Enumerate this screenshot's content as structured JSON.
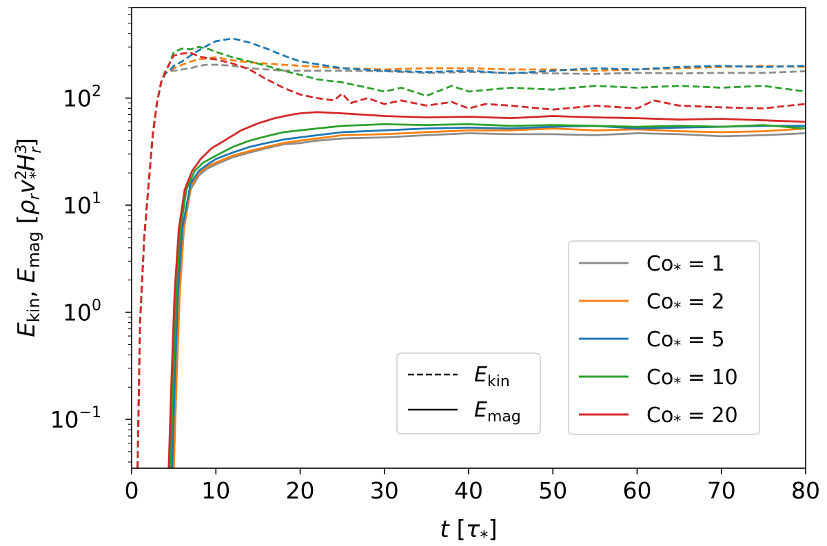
{
  "chart_data": {
    "type": "line",
    "x_label": "t [τ*]",
    "y_label": "E_kin, E_mag [ρ_r v*² H_r³]",
    "x_label_parts": {
      "var": "t",
      "unit_open": " [",
      "unit_sym": "τ",
      "unit_sub": "*",
      "unit_close": "]"
    },
    "y_label_parts": {
      "e1": "E",
      "s1": "kin",
      "sep": ", ",
      "e2": "E",
      "s2": "mag",
      "open": " [",
      "rho": "ρ",
      "rho_sub": "r",
      "v": "v",
      "v_sup": "2",
      "v_sub": "*",
      "h": "H",
      "h_sup": "3",
      "h_sub": "r",
      "close": "]"
    },
    "xlim": [
      0,
      80
    ],
    "ylim": [
      0.035,
      700
    ],
    "y_scale": "log",
    "x_ticks": [
      0,
      10,
      20,
      30,
      40,
      50,
      60,
      70,
      80
    ],
    "y_ticks": [
      {
        "value": 0.1,
        "base": "10",
        "exp": "−1"
      },
      {
        "value": 1,
        "base": "10",
        "exp": "0"
      },
      {
        "value": 10,
        "base": "10",
        "exp": "1"
      },
      {
        "value": 100,
        "base": "10",
        "exp": "2"
      }
    ],
    "legend_style": {
      "placement": "lower-center",
      "entries": [
        {
          "label": "E",
          "sub": "kin",
          "dash": "dashed"
        },
        {
          "label": "E",
          "sub": "mag",
          "dash": "solid"
        }
      ]
    },
    "legend_series": {
      "placement": "lower-right",
      "entries": [
        {
          "name": "Co*",
          "prefix": "Co",
          "sub": "*",
          "value": "= 1",
          "color": "#8c8c8c"
        },
        {
          "name": "Co*",
          "prefix": "Co",
          "sub": "*",
          "value": "= 2",
          "color": "#ff7f0e"
        },
        {
          "name": "Co*",
          "prefix": "Co",
          "sub": "*",
          "value": "= 5",
          "color": "#1f77b4"
        },
        {
          "name": "Co*",
          "prefix": "Co",
          "sub": "*",
          "value": "= 10",
          "color": "#2ca02c"
        },
        {
          "name": "Co*",
          "prefix": "Co",
          "sub": "*",
          "value": "= 20",
          "color": "#d62728"
        }
      ]
    },
    "series": [
      {
        "name": "E_kin, Co*=1",
        "color": "#8c8c8c",
        "dash": "dashed",
        "x": [
          0.7,
          1.0,
          1.5,
          2.0,
          2.5,
          3.0,
          3.5,
          4.0,
          4.5,
          5,
          6,
          7,
          8,
          9,
          10,
          12,
          14,
          16,
          18,
          20,
          25,
          30,
          35,
          40,
          45,
          50,
          55,
          60,
          65,
          70,
          75,
          80
        ],
        "y": [
          0.035,
          0.8,
          5,
          15,
          45,
          90,
          140,
          170,
          180,
          180,
          185,
          190,
          200,
          205,
          205,
          200,
          190,
          185,
          180,
          180,
          180,
          178,
          172,
          175,
          172,
          170,
          168,
          172,
          170,
          172,
          172,
          178
        ]
      },
      {
        "name": "E_kin, Co*=2",
        "color": "#ff7f0e",
        "dash": "dashed",
        "x": [
          0.7,
          1.0,
          1.5,
          2.0,
          2.5,
          3.0,
          3.5,
          4.0,
          4.5,
          5,
          6,
          7,
          8,
          9,
          10,
          12,
          14,
          16,
          18,
          20,
          25,
          30,
          35,
          40,
          45,
          50,
          55,
          60,
          65,
          70,
          75,
          80
        ],
        "y": [
          0.035,
          0.8,
          5,
          15,
          45,
          90,
          140,
          170,
          180,
          190,
          205,
          220,
          230,
          235,
          240,
          225,
          215,
          210,
          205,
          200,
          190,
          185,
          190,
          190,
          185,
          185,
          180,
          185,
          190,
          195,
          200,
          195
        ]
      },
      {
        "name": "E_kin, Co*=5",
        "color": "#1f77b4",
        "dash": "dashed",
        "x": [
          0.7,
          1.0,
          1.5,
          2.0,
          2.5,
          3.0,
          3.5,
          4.0,
          4.5,
          5,
          6,
          7,
          8,
          9,
          10,
          11,
          12,
          14,
          16,
          18,
          20,
          25,
          30,
          35,
          40,
          45,
          50,
          55,
          60,
          65,
          70,
          75,
          80
        ],
        "y": [
          0.035,
          0.8,
          5,
          15,
          45,
          90,
          140,
          170,
          180,
          200,
          220,
          250,
          280,
          310,
          340,
          350,
          360,
          330,
          290,
          250,
          220,
          190,
          180,
          175,
          180,
          170,
          180,
          190,
          185,
          195,
          200,
          195,
          200
        ]
      },
      {
        "name": "E_kin, Co*=10",
        "color": "#2ca02c",
        "dash": "dashed",
        "x": [
          0.7,
          1.0,
          1.5,
          2.0,
          2.5,
          3.0,
          3.5,
          4.0,
          4.5,
          5,
          6,
          7,
          8,
          9,
          10,
          12,
          14,
          16,
          18,
          20,
          22,
          25,
          28,
          30,
          32,
          35,
          38,
          40,
          45,
          50,
          55,
          60,
          65,
          70,
          75,
          80
        ],
        "y": [
          0.035,
          0.8,
          5,
          15,
          45,
          90,
          140,
          180,
          210,
          270,
          290,
          285,
          300,
          290,
          270,
          240,
          220,
          200,
          180,
          165,
          150,
          140,
          125,
          115,
          125,
          105,
          130,
          115,
          125,
          120,
          130,
          125,
          130,
          125,
          130,
          115
        ]
      },
      {
        "name": "E_kin, Co*=20",
        "color": "#d62728",
        "dash": "dashed",
        "x": [
          0.7,
          1.0,
          1.5,
          2.0,
          2.5,
          3.0,
          3.5,
          4.0,
          4.5,
          5,
          6,
          7,
          8,
          9,
          10,
          12,
          14,
          16,
          18,
          20,
          22,
          24,
          25,
          26,
          28,
          30,
          32,
          35,
          38,
          40,
          42,
          45,
          50,
          55,
          60,
          62,
          65,
          70,
          75,
          78,
          80
        ],
        "y": [
          0.035,
          0.8,
          5,
          15,
          45,
          90,
          140,
          175,
          210,
          250,
          260,
          265,
          245,
          235,
          230,
          210,
          185,
          150,
          125,
          108,
          100,
          95,
          110,
          90,
          100,
          88,
          95,
          85,
          92,
          80,
          88,
          85,
          78,
          85,
          80,
          95,
          85,
          82,
          80,
          85,
          88
        ]
      },
      {
        "name": "E_mag, Co*=1",
        "color": "#8c8c8c",
        "dash": "solid",
        "x": [
          5.0,
          5.3,
          5.7,
          6.2,
          7,
          8,
          9,
          10,
          12,
          14,
          16,
          18,
          20,
          22,
          25,
          30,
          35,
          40,
          45,
          50,
          55,
          60,
          65,
          70,
          75,
          80
        ],
        "y": [
          0.035,
          0.2,
          1.5,
          6,
          14,
          19,
          22,
          24,
          28,
          31,
          34,
          37,
          38,
          40,
          42,
          43,
          45,
          47,
          46,
          46,
          45,
          47,
          46,
          44,
          45,
          47
        ]
      },
      {
        "name": "E_mag, Co*=2",
        "color": "#ff7f0e",
        "dash": "solid",
        "x": [
          5.0,
          5.3,
          5.7,
          6.2,
          7,
          8,
          9,
          10,
          12,
          14,
          16,
          18,
          20,
          22,
          25,
          30,
          35,
          40,
          45,
          50,
          55,
          60,
          65,
          70,
          75,
          80
        ],
        "y": [
          0.035,
          0.2,
          1.5,
          6,
          15,
          20,
          23,
          25,
          29,
          32,
          35,
          38,
          40,
          42,
          45,
          46,
          48,
          50,
          50,
          52,
          50,
          51,
          49,
          48,
          49,
          52
        ]
      },
      {
        "name": "E_mag, Co*=5",
        "color": "#1f77b4",
        "dash": "solid",
        "x": [
          4.8,
          5.1,
          5.5,
          6.0,
          7,
          8,
          9,
          10,
          12,
          14,
          16,
          18,
          20,
          22,
          25,
          30,
          35,
          40,
          45,
          50,
          55,
          60,
          65,
          70,
          75,
          80
        ],
        "y": [
          0.035,
          0.2,
          1.5,
          6,
          16,
          21,
          24,
          27,
          31,
          35,
          38,
          41,
          43,
          45,
          48,
          50,
          52,
          53,
          52,
          54,
          55,
          52,
          53,
          54,
          55,
          55
        ]
      },
      {
        "name": "E_mag, Co*=10",
        "color": "#2ca02c",
        "dash": "solid",
        "x": [
          4.6,
          4.9,
          5.3,
          5.8,
          6.5,
          7.5,
          8.5,
          10,
          12,
          14,
          16,
          18,
          20,
          22,
          25,
          30,
          35,
          40,
          45,
          50,
          55,
          60,
          65,
          70,
          75,
          80
        ],
        "y": [
          0.035,
          0.2,
          1.5,
          6,
          14,
          21,
          25,
          29,
          35,
          40,
          44,
          48,
          50,
          52,
          55,
          57,
          56,
          57,
          55,
          56,
          55,
          54,
          55,
          54,
          56,
          52
        ]
      },
      {
        "name": "E_mag, Co*=20",
        "color": "#d62728",
        "dash": "solid",
        "x": [
          4.4,
          4.7,
          5.1,
          5.6,
          6.3,
          7.2,
          8.2,
          9.5,
          11,
          13,
          15,
          17,
          19,
          20,
          22,
          25,
          30,
          35,
          40,
          45,
          50,
          55,
          60,
          65,
          70,
          75,
          80
        ],
        "y": [
          0.035,
          0.2,
          1.5,
          6,
          14,
          21,
          27,
          34,
          40,
          50,
          58,
          65,
          70,
          72,
          74,
          72,
          68,
          66,
          67,
          65,
          68,
          66,
          65,
          63,
          64,
          62,
          60
        ]
      }
    ]
  }
}
